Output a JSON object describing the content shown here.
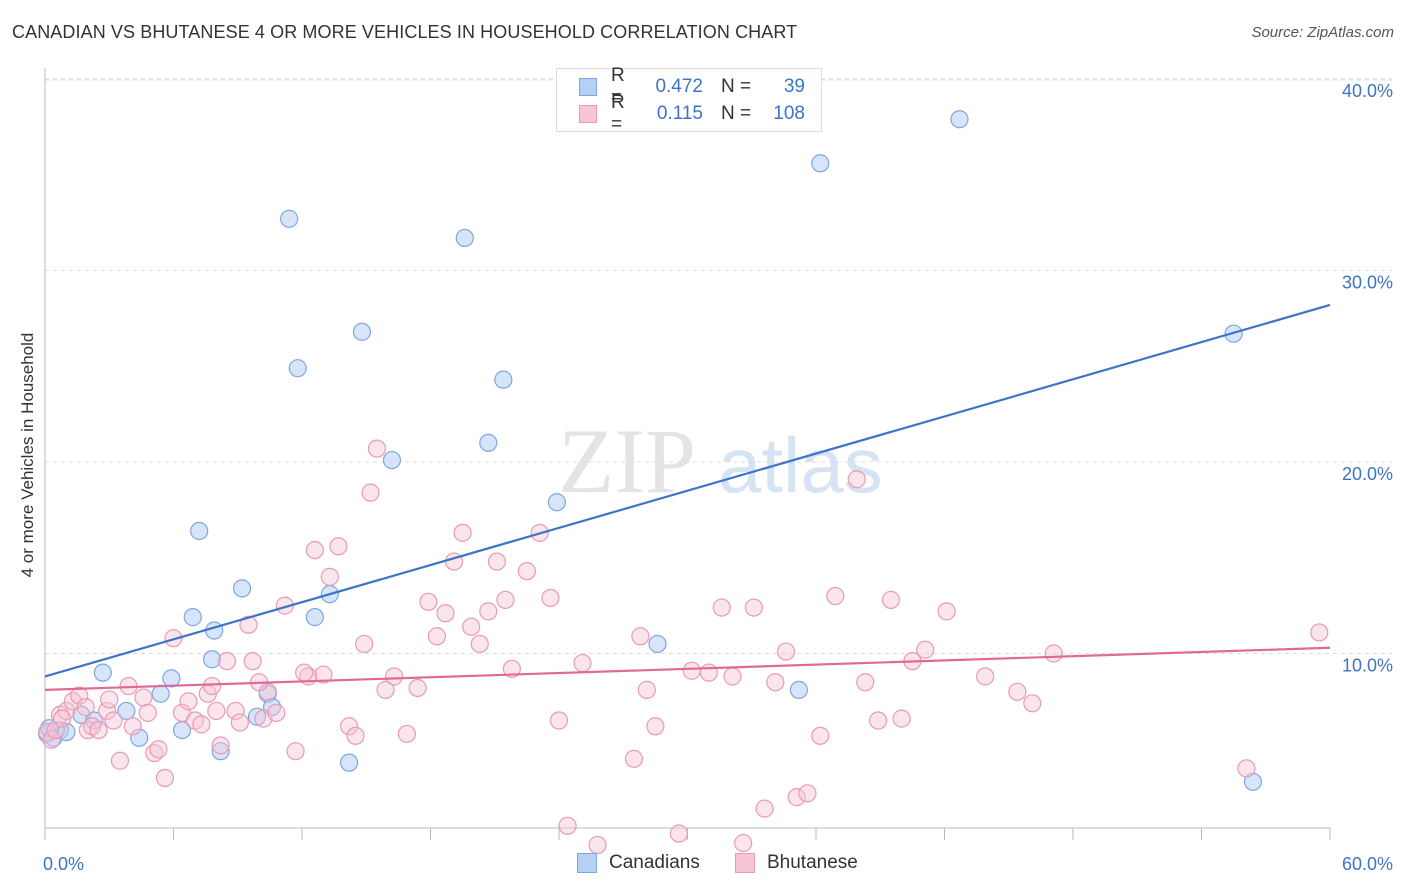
{
  "header": {
    "title": "CANADIAN VS BHUTANESE 4 OR MORE VEHICLES IN HOUSEHOLD CORRELATION CHART",
    "source": "Source: ZipAtlas.com"
  },
  "legend": {
    "r_label": "R =",
    "n_label": "N =",
    "series": [
      {
        "name": "Canadians",
        "r": "0.472",
        "n": "39",
        "fill": "#b5cff5",
        "stroke": "#7ea6e0",
        "line": "#3d74c6"
      },
      {
        "name": "Bhutanese",
        "r": "0.115",
        "n": "108",
        "fill": "#f7c5d5",
        "stroke": "#e99ab4",
        "line": "#e0699a"
      }
    ]
  },
  "watermark": {
    "zip": "ZIP",
    "atlas": "atlas"
  },
  "chart_data": {
    "type": "scatter",
    "title": "CANADIAN VS BHUTANESE 4 OR MORE VEHICLES IN HOUSEHOLD CORRELATION CHART",
    "xlabel": "",
    "ylabel": "4 or more Vehicles in Household",
    "xlim": [
      0,
      60
    ],
    "ylim": [
      0,
      40
    ],
    "x_tick_labels": [
      "0.0%",
      "60.0%"
    ],
    "y_ticks": [
      10,
      20,
      30,
      40
    ],
    "y_tick_labels": [
      "10.0%",
      "20.0%",
      "30.0%",
      "40.0%"
    ],
    "grid": true,
    "legend_position": "top-center",
    "series": [
      {
        "name": "Canadians",
        "color": "#7ea6e0",
        "trend": {
          "x": [
            0,
            60
          ],
          "y": [
            8.8,
            28.2
          ]
        },
        "points": [
          [
            0.1,
            5.8
          ],
          [
            0.4,
            5.6
          ],
          [
            0.7,
            6.0
          ],
          [
            1.0,
            5.9
          ],
          [
            1.7,
            6.8
          ],
          [
            2.3,
            6.5
          ],
          [
            2.7,
            9.0
          ],
          [
            3.8,
            7.0
          ],
          [
            4.4,
            5.6
          ],
          [
            5.4,
            7.9
          ],
          [
            5.9,
            8.7
          ],
          [
            6.4,
            6.0
          ],
          [
            6.9,
            11.9
          ],
          [
            7.2,
            16.4
          ],
          [
            7.8,
            9.7
          ],
          [
            7.9,
            11.2
          ],
          [
            8.2,
            4.9
          ],
          [
            9.2,
            13.4
          ],
          [
            9.9,
            6.7
          ],
          [
            10.4,
            7.9
          ],
          [
            10.6,
            7.2
          ],
          [
            11.4,
            32.7
          ],
          [
            11.8,
            24.9
          ],
          [
            12.6,
            11.9
          ],
          [
            13.3,
            13.1
          ],
          [
            14.2,
            4.3
          ],
          [
            14.8,
            26.8
          ],
          [
            16.2,
            20.1
          ],
          [
            19.6,
            31.7
          ],
          [
            20.7,
            21.0
          ],
          [
            21.4,
            24.3
          ],
          [
            23.9,
            17.9
          ],
          [
            28.6,
            10.5
          ],
          [
            35.2,
            8.1
          ],
          [
            36.2,
            35.6
          ],
          [
            42.7,
            37.9
          ],
          [
            55.5,
            26.7
          ],
          [
            56.4,
            3.3
          ],
          [
            0.2,
            6.1
          ]
        ]
      },
      {
        "name": "Bhutanese",
        "color": "#e99ab4",
        "trend": {
          "x": [
            0,
            60
          ],
          "y": [
            8.1,
            10.3
          ]
        },
        "points": [
          [
            0.1,
            5.9
          ],
          [
            0.3,
            5.5
          ],
          [
            0.5,
            6.0
          ],
          [
            0.7,
            6.8
          ],
          [
            1.0,
            7.0
          ],
          [
            1.3,
            7.5
          ],
          [
            1.6,
            7.8
          ],
          [
            2.0,
            6.0
          ],
          [
            2.2,
            6.2
          ],
          [
            2.9,
            7.0
          ],
          [
            3.2,
            6.5
          ],
          [
            3.5,
            4.4
          ],
          [
            3.9,
            8.3
          ],
          [
            4.1,
            6.2
          ],
          [
            4.6,
            7.7
          ],
          [
            4.8,
            6.9
          ],
          [
            5.1,
            4.8
          ],
          [
            5.3,
            5.0
          ],
          [
            5.6,
            3.5
          ],
          [
            6.0,
            10.8
          ],
          [
            6.4,
            6.9
          ],
          [
            6.7,
            7.5
          ],
          [
            7.0,
            6.5
          ],
          [
            7.3,
            6.3
          ],
          [
            7.6,
            7.9
          ],
          [
            7.8,
            8.3
          ],
          [
            8.2,
            5.2
          ],
          [
            8.5,
            9.6
          ],
          [
            8.9,
            7.0
          ],
          [
            9.1,
            6.4
          ],
          [
            9.5,
            11.5
          ],
          [
            9.7,
            9.6
          ],
          [
            10.2,
            6.6
          ],
          [
            10.4,
            8.0
          ],
          [
            10.8,
            6.9
          ],
          [
            11.2,
            12.5
          ],
          [
            11.7,
            4.9
          ],
          [
            12.3,
            8.8
          ],
          [
            12.6,
            15.4
          ],
          [
            13.0,
            8.9
          ],
          [
            13.3,
            14.0
          ],
          [
            13.7,
            15.6
          ],
          [
            14.2,
            6.2
          ],
          [
            14.5,
            5.7
          ],
          [
            14.9,
            10.5
          ],
          [
            15.2,
            18.4
          ],
          [
            15.5,
            20.7
          ],
          [
            15.9,
            8.1
          ],
          [
            16.3,
            8.8
          ],
          [
            16.9,
            5.8
          ],
          [
            17.4,
            8.2
          ],
          [
            17.9,
            12.7
          ],
          [
            18.3,
            10.9
          ],
          [
            18.7,
            12.1
          ],
          [
            19.1,
            14.8
          ],
          [
            19.5,
            16.3
          ],
          [
            19.9,
            11.4
          ],
          [
            20.3,
            10.5
          ],
          [
            20.7,
            12.2
          ],
          [
            21.1,
            14.8
          ],
          [
            21.5,
            12.8
          ],
          [
            21.8,
            9.2
          ],
          [
            22.5,
            14.3
          ],
          [
            23.1,
            16.3
          ],
          [
            23.6,
            12.9
          ],
          [
            24.0,
            6.5
          ],
          [
            24.4,
            1.0
          ],
          [
            25.1,
            9.5
          ],
          [
            25.8,
            0.0
          ],
          [
            27.5,
            4.5
          ],
          [
            27.8,
            10.9
          ],
          [
            28.1,
            8.1
          ],
          [
            28.5,
            6.2
          ],
          [
            29.6,
            0.6
          ],
          [
            30.2,
            9.1
          ],
          [
            31.0,
            9.0
          ],
          [
            31.6,
            12.4
          ],
          [
            32.1,
            8.8
          ],
          [
            32.6,
            0.1
          ],
          [
            33.1,
            12.4
          ],
          [
            33.6,
            1.9
          ],
          [
            34.1,
            8.5
          ],
          [
            34.6,
            10.1
          ],
          [
            35.1,
            2.5
          ],
          [
            35.6,
            2.7
          ],
          [
            36.2,
            5.7
          ],
          [
            36.9,
            13.0
          ],
          [
            37.9,
            19.1
          ],
          [
            38.3,
            8.5
          ],
          [
            38.9,
            6.5
          ],
          [
            39.5,
            12.8
          ],
          [
            40.0,
            6.6
          ],
          [
            40.5,
            9.6
          ],
          [
            41.1,
            10.2
          ],
          [
            42.1,
            12.2
          ],
          [
            43.9,
            8.8
          ],
          [
            45.4,
            8.0
          ],
          [
            46.1,
            7.4
          ],
          [
            47.1,
            10.0
          ],
          [
            56.1,
            4.0
          ],
          [
            59.5,
            11.1
          ],
          [
            0.8,
            6.6
          ],
          [
            1.9,
            7.2
          ],
          [
            2.5,
            6.0
          ],
          [
            3.0,
            7.6
          ],
          [
            8.0,
            7.0
          ],
          [
            12.1,
            9.0
          ],
          [
            10.0,
            8.5
          ]
        ]
      }
    ]
  }
}
